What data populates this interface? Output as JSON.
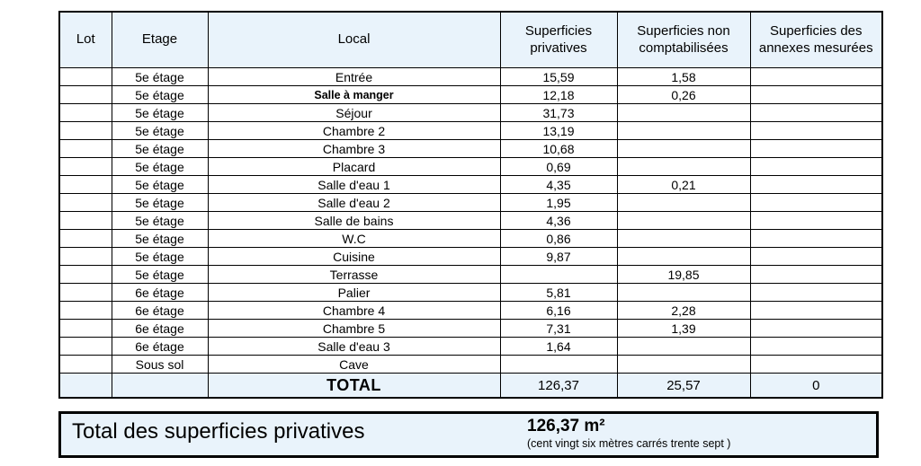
{
  "colors": {
    "highlight": "#e9f3fb",
    "border": "#000000",
    "background": "#ffffff"
  },
  "table": {
    "headers": [
      "Lot",
      "Etage",
      "Local",
      "Superficies privatives",
      "Superficies non comptabilisées",
      "Superficies des annexes mesurées"
    ],
    "rows": [
      {
        "lot": "",
        "etage": "5e étage",
        "local": "Entrée",
        "privatives": "15,59",
        "non_comptabilisees": "1,58",
        "annexes": ""
      },
      {
        "lot": "",
        "etage": "5e étage",
        "local": "Salle à manger",
        "privatives": "12,18",
        "non_comptabilisees": "0,26",
        "annexes": "",
        "bold_local": true
      },
      {
        "lot": "",
        "etage": "5e étage",
        "local": "Séjour",
        "privatives": "31,73",
        "non_comptabilisees": "",
        "annexes": ""
      },
      {
        "lot": "",
        "etage": "5e étage",
        "local": "Chambre 2",
        "privatives": "13,19",
        "non_comptabilisees": "",
        "annexes": ""
      },
      {
        "lot": "",
        "etage": "5e étage",
        "local": "Chambre 3",
        "privatives": "10,68",
        "non_comptabilisees": "",
        "annexes": ""
      },
      {
        "lot": "",
        "etage": "5e étage",
        "local": "Placard",
        "privatives": "0,69",
        "non_comptabilisees": "",
        "annexes": ""
      },
      {
        "lot": "",
        "etage": "5e étage",
        "local": "Salle d'eau 1",
        "privatives": "4,35",
        "non_comptabilisees": "0,21",
        "annexes": ""
      },
      {
        "lot": "",
        "etage": "5e étage",
        "local": "Salle d'eau 2",
        "privatives": "1,95",
        "non_comptabilisees": "",
        "annexes": ""
      },
      {
        "lot": "",
        "etage": "5e étage",
        "local": "Salle de bains",
        "privatives": "4,36",
        "non_comptabilisees": "",
        "annexes": ""
      },
      {
        "lot": "",
        "etage": "5e étage",
        "local": "W.C",
        "privatives": "0,86",
        "non_comptabilisees": "",
        "annexes": ""
      },
      {
        "lot": "",
        "etage": "5e étage",
        "local": "Cuisine",
        "privatives": "9,87",
        "non_comptabilisees": "",
        "annexes": ""
      },
      {
        "lot": "",
        "etage": "5e étage",
        "local": "Terrasse",
        "privatives": "",
        "non_comptabilisees": "19,85",
        "annexes": ""
      },
      {
        "lot": "",
        "etage": "6e étage",
        "local": "Palier",
        "privatives": "5,81",
        "non_comptabilisees": "",
        "annexes": ""
      },
      {
        "lot": "",
        "etage": "6e étage",
        "local": "Chambre 4",
        "privatives": "6,16",
        "non_comptabilisees": "2,28",
        "annexes": ""
      },
      {
        "lot": "",
        "etage": "6e étage",
        "local": "Chambre 5",
        "privatives": "7,31",
        "non_comptabilisees": "1,39",
        "annexes": ""
      },
      {
        "lot": "",
        "etage": "6e étage",
        "local": "Salle d'eau 3",
        "privatives": "1,64",
        "non_comptabilisees": "",
        "annexes": ""
      },
      {
        "lot": "",
        "etage": "Sous sol",
        "local": "Cave",
        "privatives": "",
        "non_comptabilisees": "",
        "annexes": ""
      }
    ],
    "total": {
      "lot": "",
      "etage": "",
      "label": "TOTAL",
      "privatives": "126,37",
      "non_comptabilisees": "25,57",
      "annexes": "0"
    }
  },
  "summary": {
    "label": "Total des superficies privatives",
    "value": "126,37 m²",
    "value_words": "(cent vingt six mètres carrés trente sept  )"
  }
}
